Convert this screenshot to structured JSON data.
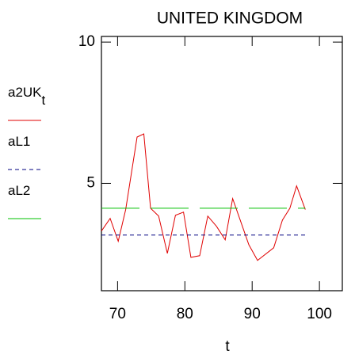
{
  "chart_data": {
    "type": "line",
    "title": "UNITED KINGDOM",
    "x_label": "t",
    "xlim": [
      67.6,
      103.4
    ],
    "xticks": [
      70,
      80,
      90,
      100
    ],
    "ylim": [
      1.2,
      10.2
    ],
    "yticks": [
      5,
      10
    ],
    "grid": false,
    "series": [
      {
        "name": "a2UK",
        "subscript": "t",
        "color": "#e00000",
        "dash": "none",
        "x": [
          67.6,
          68.9,
          70.1,
          71.2,
          72.9,
          73.9,
          74.9,
          76.1,
          77.4,
          78.6,
          79.8,
          80.9,
          82.2,
          83.4,
          84.7,
          86.0,
          87.1,
          88.5,
          89.5,
          90.8,
          93.2,
          94.5,
          95.6,
          96.6,
          97.9
        ],
        "values": [
          3.31,
          3.76,
          2.95,
          4.07,
          6.64,
          6.75,
          4.12,
          3.84,
          2.52,
          3.87,
          3.98,
          2.38,
          2.44,
          3.84,
          3.48,
          3.0,
          4.46,
          3.51,
          2.83,
          2.27,
          2.72,
          3.7,
          4.12,
          4.91,
          4.07
        ]
      },
      {
        "name": "aL1",
        "color": "#000080",
        "dash": "5 4",
        "x": [
          67.6,
          97.9
        ],
        "values": [
          3.17,
          3.17
        ]
      },
      {
        "name": "aL2",
        "color": "#00c000",
        "dash": "48 14",
        "x": [
          67.6,
          97.9
        ],
        "values": [
          4.12,
          4.12
        ]
      }
    ]
  }
}
